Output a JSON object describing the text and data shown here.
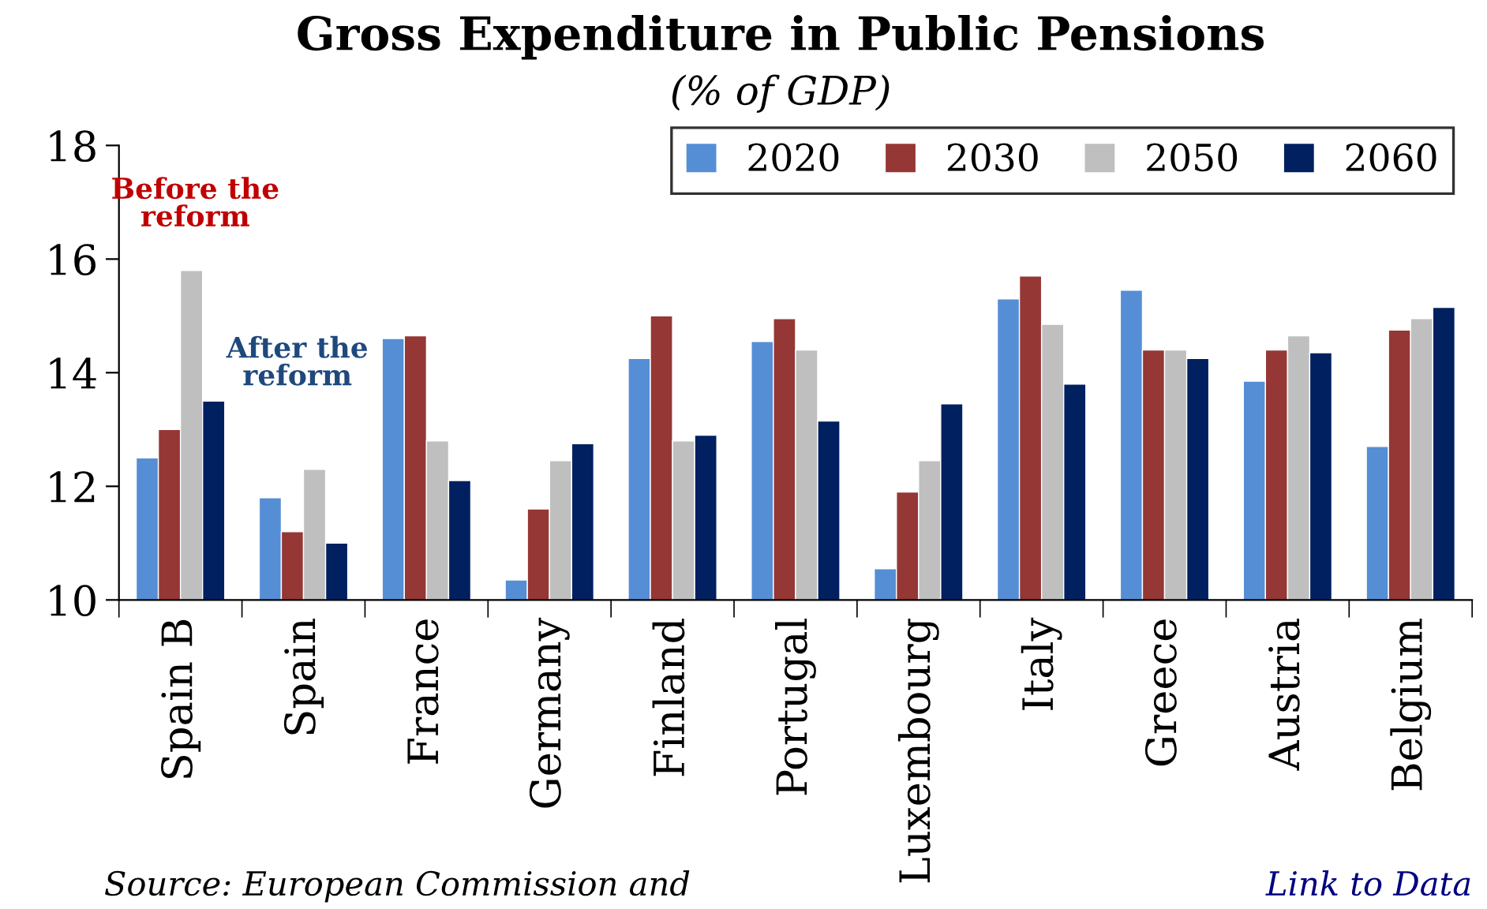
{
  "chart_data": {
    "type": "bar",
    "title": "Gross Expenditure in Public Pensions",
    "subtitle": "(% of GDP)",
    "categories": [
      "Spain B",
      "Spain",
      "France",
      "Germany",
      "Finland",
      "Portugal",
      "Luxembourg",
      "Italy",
      "Greece",
      "Austria",
      "Belgium"
    ],
    "series": [
      {
        "name": "2020",
        "color": "#558ed5",
        "values": [
          12.5,
          11.8,
          14.6,
          10.35,
          14.25,
          14.55,
          10.55,
          15.3,
          15.45,
          13.85,
          12.7
        ]
      },
      {
        "name": "2030",
        "color": "#953735",
        "values": [
          13.0,
          11.2,
          14.65,
          11.6,
          15.0,
          14.95,
          11.9,
          15.7,
          14.4,
          14.4,
          14.75
        ]
      },
      {
        "name": "2050",
        "color": "#bfbfbf",
        "values": [
          15.8,
          12.3,
          12.8,
          12.45,
          12.8,
          14.4,
          12.45,
          14.85,
          14.4,
          14.65,
          14.95
        ]
      },
      {
        "name": "2060",
        "color": "#002060",
        "values": [
          13.5,
          11.0,
          12.1,
          12.75,
          12.9,
          13.15,
          13.45,
          13.8,
          14.25,
          14.35,
          15.15
        ]
      }
    ],
    "ylim": [
      10,
      18
    ],
    "yticks": [
      10,
      12,
      14,
      16,
      18
    ],
    "grid": false,
    "legend": "top right",
    "annotations": [
      "Before the\nreform",
      "After the\nreform",
      "Source: European Commission and",
      "Link to Data"
    ]
  }
}
